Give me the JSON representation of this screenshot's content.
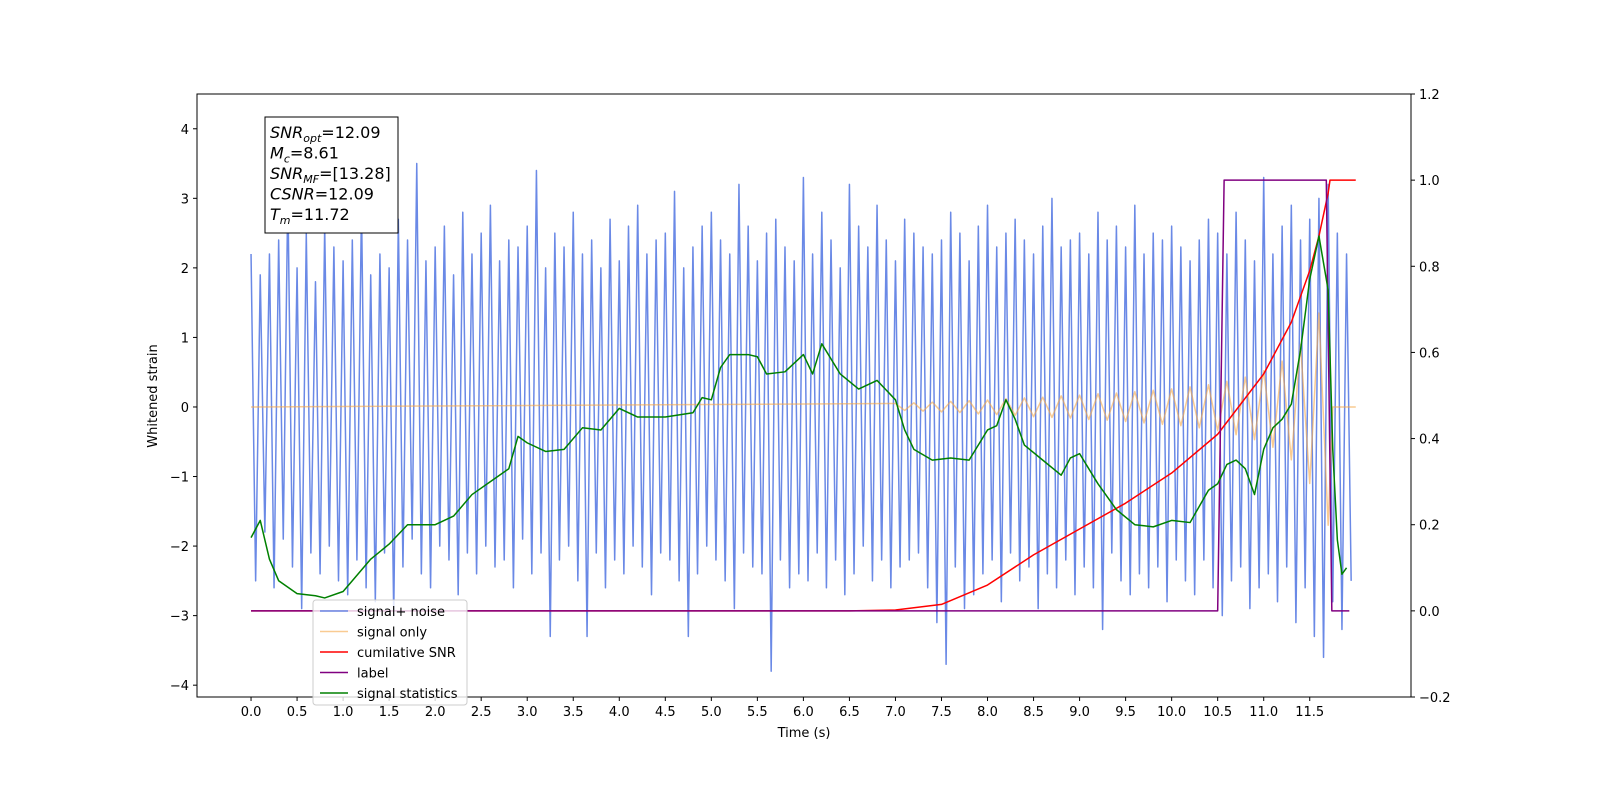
{
  "chart_data": {
    "type": "line",
    "xlabel": "Time (s)",
    "ylabel": "Whitened strain",
    "xlim": [
      -0.587,
      12.6
    ],
    "ylim": [
      -4.17,
      4.5
    ],
    "y2lim": [
      -0.2,
      1.2
    ],
    "xticks": [
      {
        "value": 0,
        "label": "0.0"
      },
      0.5,
      {
        "value": 1,
        "label": "1.0"
      },
      1.5,
      {
        "value": 2,
        "label": "2.0"
      },
      2.5,
      {
        "value": 3,
        "label": "3.0"
      },
      3.5,
      {
        "value": 4,
        "label": "4.0"
      },
      4.5,
      {
        "value": 5,
        "label": "5.0"
      },
      5.5,
      {
        "value": 6,
        "label": "6.0"
      },
      6.5,
      {
        "value": 7,
        "label": "7.0"
      },
      7.5,
      {
        "value": 8,
        "label": "8.0"
      },
      8.5,
      {
        "value": 9,
        "label": "9.0"
      },
      9.5,
      {
        "value": 10,
        "label": "10.0"
      },
      10.5,
      {
        "value": 11,
        "label": "11.0"
      },
      11.5
    ],
    "yticks": [
      {
        "value": -4,
        "label": "−4"
      },
      {
        "value": -3,
        "label": "−3"
      },
      {
        "value": -2,
        "label": "−2"
      },
      {
        "value": -1,
        "label": "−1"
      },
      0,
      1,
      2,
      3,
      4
    ],
    "y2ticks": [
      {
        "value": -0.2,
        "label": "−0.2"
      },
      {
        "value": 0,
        "label": "0.0"
      },
      0.2,
      0.4,
      0.6,
      0.8,
      {
        "value": 1,
        "label": "1.0"
      },
      1.2
    ],
    "legend": "lower left",
    "annotation": [
      {
        "text": "SNR",
        "sub": "opt",
        "rest": "=12.09"
      },
      {
        "text": "M",
        "sub": "c",
        "rest": "=8.61"
      },
      {
        "text": "SNR",
        "sub": "MF",
        "rest": "=[13.28]"
      },
      {
        "text": "CSNR",
        "rest": "=12.09"
      },
      {
        "text": "T",
        "sub": "m",
        "rest": "=11.72"
      }
    ],
    "series": [
      {
        "name": "signal+ noise",
        "color": "#6a89e6",
        "axis": "y",
        "x": [
          0,
          0.05,
          0.1,
          0.15,
          0.2,
          0.25,
          0.3,
          0.35,
          0.4,
          0.45,
          0.5,
          0.55,
          0.6,
          0.65,
          0.7,
          0.75,
          0.8,
          0.85,
          0.9,
          0.95,
          1,
          1.05,
          1.1,
          1.15,
          1.2,
          1.25,
          1.3,
          1.35,
          1.4,
          1.45,
          1.5,
          1.55,
          1.6,
          1.65,
          1.7,
          1.75,
          1.8,
          1.85,
          1.9,
          1.95,
          2,
          2.05,
          2.1,
          2.15,
          2.2,
          2.25,
          2.3,
          2.35,
          2.4,
          2.45,
          2.5,
          2.55,
          2.6,
          2.65,
          2.7,
          2.75,
          2.8,
          2.85,
          2.9,
          2.95,
          3,
          3.05,
          3.1,
          3.15,
          3.2,
          3.25,
          3.3,
          3.35,
          3.4,
          3.45,
          3.5,
          3.55,
          3.6,
          3.65,
          3.7,
          3.75,
          3.8,
          3.85,
          3.9,
          3.95,
          4,
          4.05,
          4.1,
          4.15,
          4.2,
          4.25,
          4.3,
          4.35,
          4.4,
          4.45,
          4.5,
          4.55,
          4.6,
          4.65,
          4.7,
          4.75,
          4.8,
          4.85,
          4.9,
          4.95,
          5,
          5.05,
          5.1,
          5.15,
          5.2,
          5.25,
          5.3,
          5.35,
          5.4,
          5.45,
          5.5,
          5.55,
          5.6,
          5.65,
          5.7,
          5.75,
          5.8,
          5.85,
          5.9,
          5.95,
          6,
          6.05,
          6.1,
          6.15,
          6.2,
          6.25,
          6.3,
          6.35,
          6.4,
          6.45,
          6.5,
          6.55,
          6.6,
          6.65,
          6.7,
          6.75,
          6.8,
          6.85,
          6.9,
          6.95,
          7,
          7.05,
          7.1,
          7.15,
          7.2,
          7.25,
          7.3,
          7.35,
          7.4,
          7.45,
          7.5,
          7.55,
          7.6,
          7.65,
          7.7,
          7.75,
          7.8,
          7.85,
          7.9,
          7.95,
          8,
          8.05,
          8.1,
          8.15,
          8.2,
          8.25,
          8.3,
          8.35,
          8.4,
          8.45,
          8.5,
          8.55,
          8.6,
          8.65,
          8.7,
          8.75,
          8.8,
          8.85,
          8.9,
          8.95,
          9,
          9.05,
          9.1,
          9.15,
          9.2,
          9.25,
          9.3,
          9.35,
          9.4,
          9.45,
          9.5,
          9.55,
          9.6,
          9.65,
          9.7,
          9.75,
          9.8,
          9.85,
          9.9,
          9.95,
          10,
          10.05,
          10.1,
          10.15,
          10.2,
          10.25,
          10.3,
          10.35,
          10.4,
          10.45,
          10.5,
          10.55,
          10.6,
          10.65,
          10.7,
          10.75,
          10.8,
          10.85,
          10.9,
          10.95,
          11,
          11.05,
          11.1,
          11.15,
          11.2,
          11.25,
          11.3,
          11.35,
          11.4,
          11.45,
          11.5,
          11.55,
          11.6,
          11.65,
          11.7,
          11.75,
          11.8,
          11.85,
          11.9,
          11.95
        ],
        "values": [
          2.2,
          -2.5,
          1.9,
          -1.8,
          2.2,
          -2.6,
          2.4,
          -1.9,
          3.1,
          -2.3,
          2.0,
          -2.9,
          2.5,
          -2.1,
          1.8,
          -2.4,
          2.6,
          -2.0,
          2.3,
          -2.5,
          2.1,
          -2.7,
          2.4,
          -2.2,
          2.9,
          -2.6,
          1.9,
          -2.8,
          2.2,
          -2.1,
          2.0,
          -3.0,
          2.7,
          -2.3,
          2.4,
          -1.9,
          3.5,
          -2.4,
          2.1,
          -2.6,
          2.3,
          -2.0,
          2.6,
          -2.2,
          1.9,
          -2.7,
          2.8,
          -2.1,
          2.2,
          -2.4,
          2.5,
          -2.0,
          2.9,
          -2.3,
          2.1,
          -2.2,
          2.4,
          -2.6,
          2.3,
          -1.9,
          2.6,
          -2.4,
          3.4,
          -2.1,
          2.0,
          -3.3,
          2.5,
          -2.2,
          2.3,
          -2.0,
          2.8,
          -2.5,
          2.2,
          -3.3,
          2.4,
          -2.1,
          2.0,
          -2.6,
          2.7,
          -2.2,
          2.1,
          -2.4,
          2.6,
          -2.0,
          2.9,
          -2.3,
          2.2,
          -2.7,
          2.4,
          -2.1,
          2.5,
          -2.2,
          3.1,
          -2.5,
          2.0,
          -3.3,
          2.3,
          -2.4,
          2.6,
          -2.0,
          2.8,
          -2.2,
          2.4,
          -2.5,
          2.2,
          -2.9,
          3.2,
          -2.1,
          2.6,
          -2.3,
          2.1,
          -2.4,
          2.5,
          -3.8,
          2.7,
          -2.2,
          2.3,
          -2.6,
          2.1,
          -2.4,
          3.3,
          -2.5,
          2.2,
          -2.1,
          2.8,
          -2.6,
          2.4,
          -2.2,
          2.0,
          -2.7,
          3.2,
          -2.4,
          2.6,
          -2.0,
          2.3,
          -2.5,
          2.9,
          -2.2,
          2.4,
          -2.6,
          2.1,
          -2.3,
          2.7,
          -2.2,
          2.5,
          -2.1,
          2.3,
          -2.6,
          2.2,
          -3.1,
          2.4,
          -3.7,
          2.8,
          -2.3,
          2.5,
          -2.9,
          2.1,
          -2.7,
          2.6,
          -2.4,
          2.9,
          -2.2,
          2.3,
          -2.8,
          2.5,
          -2.1,
          2.7,
          -2.5,
          2.4,
          -2.3,
          2.2,
          -2.9,
          2.6,
          -2.4,
          3.0,
          -2.6,
          2.3,
          -2.2,
          2.4,
          -2.7,
          2.5,
          -2.3,
          2.2,
          -2.6,
          2.8,
          -3.2,
          2.4,
          -2.1,
          2.6,
          -2.5,
          2.3,
          -2.7,
          2.9,
          -2.4,
          2.2,
          -2.6,
          2.5,
          -2.3,
          2.4,
          -2.8,
          2.6,
          -2.2,
          2.3,
          -2.5,
          2.1,
          -2.7,
          2.4,
          -2.2,
          2.7,
          -2.6,
          2.5,
          -3.0,
          2.2,
          -2.5,
          2.8,
          -2.3,
          2.4,
          -2.9,
          2.1,
          -2.6,
          3.3,
          -2.4,
          2.2,
          -2.8,
          2.6,
          -2.3,
          2.9,
          -3.1,
          2.4,
          -2.6,
          2.7,
          -3.3,
          3.0,
          -3.6,
          3.2,
          -2.8,
          2.5,
          -3.2,
          2.2,
          -2.5
        ]
      },
      {
        "name": "signal only",
        "color": "#f5a94a",
        "axis": "y",
        "x": [
          0,
          7.0,
          7.1,
          7.2,
          7.3,
          7.4,
          7.5,
          7.6,
          7.7,
          7.8,
          7.9,
          8.0,
          8.1,
          8.2,
          8.3,
          8.4,
          8.5,
          8.6,
          8.7,
          8.8,
          8.9,
          9.0,
          9.1,
          9.2,
          9.3,
          9.4,
          9.5,
          9.6,
          9.7,
          9.8,
          9.9,
          10.0,
          10.1,
          10.2,
          10.3,
          10.4,
          10.5,
          10.6,
          10.7,
          10.8,
          10.9,
          11.0,
          11.1,
          11.2,
          11.3,
          11.4,
          11.5,
          11.6,
          11.7,
          11.75,
          12.0
        ],
        "values": [
          0,
          0.05,
          -0.05,
          0.06,
          -0.06,
          0.07,
          -0.07,
          0.08,
          -0.08,
          0.09,
          -0.1,
          0.1,
          -0.11,
          0.12,
          -0.12,
          0.13,
          -0.14,
          0.14,
          -0.15,
          0.16,
          -0.16,
          0.17,
          -0.18,
          0.19,
          -0.19,
          0.2,
          -0.21,
          0.22,
          -0.23,
          0.24,
          -0.25,
          0.26,
          -0.27,
          0.29,
          -0.3,
          0.32,
          -0.34,
          0.37,
          -0.4,
          0.43,
          -0.47,
          0.52,
          -0.58,
          0.66,
          -0.76,
          0.9,
          -1.1,
          1.35,
          -1.7,
          0,
          0
        ]
      },
      {
        "name": "cumilative SNR",
        "color": "#ff0000",
        "axis": "y2",
        "x": [
          0,
          6.5,
          7.0,
          7.5,
          8.0,
          8.5,
          9.0,
          9.5,
          10.0,
          10.5,
          11.0,
          11.3,
          11.5,
          11.6,
          11.7,
          11.72,
          12.0
        ],
        "values": [
          0,
          0,
          0.002,
          0.015,
          0.06,
          0.13,
          0.19,
          0.25,
          0.32,
          0.41,
          0.55,
          0.67,
          0.79,
          0.87,
          0.97,
          1.0,
          1.0
        ]
      },
      {
        "name": "label",
        "color": "#800080",
        "axis": "y2",
        "x": [
          0,
          10.5,
          10.57,
          11.68,
          11.74,
          11.93
        ],
        "values": [
          0,
          0,
          1,
          1,
          0,
          0
        ]
      },
      {
        "name": "signal statistics",
        "color": "#008000",
        "axis": "y2",
        "x": [
          0,
          0.1,
          0.2,
          0.3,
          0.5,
          0.7,
          0.8,
          1.0,
          1.1,
          1.3,
          1.5,
          1.7,
          2.0,
          2.2,
          2.4,
          2.6,
          2.8,
          2.9,
          3.0,
          3.2,
          3.4,
          3.6,
          3.8,
          4.0,
          4.2,
          4.5,
          4.8,
          4.9,
          5.0,
          5.1,
          5.2,
          5.4,
          5.5,
          5.6,
          5.8,
          6.0,
          6.1,
          6.2,
          6.4,
          6.6,
          6.8,
          7.0,
          7.1,
          7.2,
          7.4,
          7.6,
          7.8,
          8.0,
          8.1,
          8.2,
          8.3,
          8.4,
          8.6,
          8.8,
          8.9,
          9.0,
          9.2,
          9.4,
          9.6,
          9.8,
          10.0,
          10.2,
          10.4,
          10.5,
          10.6,
          10.7,
          10.8,
          10.9,
          11.0,
          11.1,
          11.2,
          11.3,
          11.4,
          11.5,
          11.6,
          11.7,
          11.75,
          11.8,
          11.85,
          11.9
        ],
        "values": [
          0.17,
          0.21,
          0.12,
          0.07,
          0.04,
          0.035,
          0.03,
          0.045,
          0.07,
          0.12,
          0.155,
          0.2,
          0.2,
          0.22,
          0.27,
          0.3,
          0.33,
          0.405,
          0.39,
          0.37,
          0.375,
          0.425,
          0.42,
          0.47,
          0.45,
          0.45,
          0.46,
          0.495,
          0.49,
          0.565,
          0.595,
          0.595,
          0.59,
          0.55,
          0.555,
          0.595,
          0.55,
          0.62,
          0.55,
          0.515,
          0.535,
          0.49,
          0.42,
          0.375,
          0.35,
          0.355,
          0.35,
          0.42,
          0.43,
          0.49,
          0.445,
          0.385,
          0.35,
          0.315,
          0.355,
          0.365,
          0.295,
          0.235,
          0.2,
          0.195,
          0.21,
          0.205,
          0.28,
          0.295,
          0.34,
          0.35,
          0.33,
          0.27,
          0.375,
          0.425,
          0.445,
          0.48,
          0.605,
          0.77,
          0.87,
          0.745,
          0.375,
          0.165,
          0.085,
          0.1
        ]
      }
    ]
  }
}
